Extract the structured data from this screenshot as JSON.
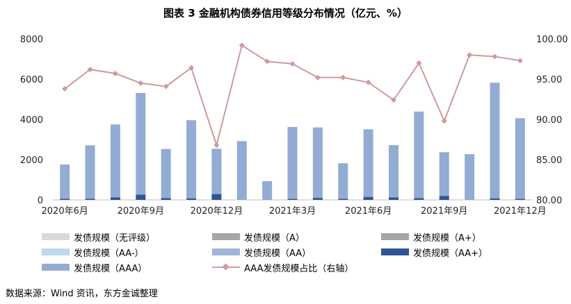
{
  "title": "图表 3 金融机构债券信用等级分布情况（亿元、%）",
  "source": "数据来源：Wind 资讯，东方金诚整理",
  "colors": {
    "none": "#d9d9d9",
    "A": "#a6a6a6",
    "A_plus": "#a6a6a6",
    "AA_minus": "#bdd7ee",
    "AA": "#9fb6d6",
    "AA_plus": "#2f5597",
    "AAA": "#93acd3",
    "ratio_line": "#d09a9a"
  },
  "chart_data": {
    "type": "bar",
    "stacked": true,
    "categories": [
      "2020年6月",
      "2020年7月",
      "2020年8月",
      "2020年9月",
      "2020年10月",
      "2020年11月",
      "2020年12月",
      "2021年1月",
      "2021年2月",
      "2021年3月",
      "2021年4月",
      "2021年5月",
      "2021年6月",
      "2021年7月",
      "2021年8月",
      "2021年9月",
      "2021年10月",
      "2021年11月",
      "2021年12月"
    ],
    "x_tick_labels": [
      "2020年6月",
      "2020年9月",
      "2020年12月",
      "2021年3月",
      "2021年6月",
      "2021年9月",
      "2021年12月"
    ],
    "x_tick_indices": [
      0,
      3,
      6,
      9,
      12,
      15,
      18
    ],
    "y_left": {
      "min": 0,
      "max": 8000,
      "ticks": [
        "0",
        "2000",
        "4000",
        "6000",
        "8000"
      ]
    },
    "y_right": {
      "min": 80,
      "max": 100,
      "ticks": [
        "80.00",
        "85.00",
        "90.00",
        "95.00",
        "100.00"
      ]
    },
    "series": [
      {
        "name": "发债规模（无评级）",
        "key": "none",
        "axis": "left",
        "values": [
          0,
          0,
          0,
          0,
          0,
          0,
          0,
          0,
          0,
          0,
          0,
          0,
          0,
          0,
          0,
          0,
          0,
          0,
          0
        ]
      },
      {
        "name": "发债规模（A）",
        "key": "A",
        "axis": "left",
        "values": [
          0,
          0,
          0,
          0,
          0,
          0,
          0,
          0,
          0,
          0,
          0,
          0,
          0,
          0,
          0,
          0,
          0,
          0,
          0
        ]
      },
      {
        "name": "发债规模（A+）",
        "key": "A_plus",
        "axis": "left",
        "values": [
          0,
          0,
          0,
          0,
          0,
          0,
          0,
          0,
          0,
          0,
          0,
          0,
          0,
          0,
          0,
          0,
          0,
          0,
          0
        ]
      },
      {
        "name": "发债规模（AA-）",
        "key": "AA_minus",
        "axis": "left",
        "values": [
          0,
          0,
          0,
          0,
          0,
          0,
          0,
          0,
          0,
          0,
          0,
          0,
          0,
          0,
          0,
          0,
          0,
          0,
          0
        ]
      },
      {
        "name": "发债规模（AA）",
        "key": "AA",
        "axis": "left",
        "values": [
          0,
          0,
          0,
          0,
          0,
          0,
          0,
          0,
          0,
          0,
          0,
          0,
          0,
          0,
          0,
          0,
          0,
          0,
          0
        ]
      },
      {
        "name": "发债规模（AA+）",
        "key": "AA_plus",
        "axis": "left",
        "values": [
          60,
          60,
          130,
          260,
          90,
          80,
          290,
          0,
          0,
          50,
          100,
          50,
          150,
          130,
          90,
          200,
          0,
          80,
          50
        ]
      },
      {
        "name": "发债规模（AAA）",
        "key": "AAA",
        "axis": "left",
        "values": [
          1700,
          2650,
          3620,
          5050,
          2440,
          3880,
          2250,
          2920,
          930,
          3570,
          3500,
          1770,
          3360,
          2590,
          4300,
          2170,
          2270,
          5740,
          4010
        ]
      },
      {
        "name": "AAA发债规模占比（右轴）",
        "key": "ratio_line",
        "axis": "right",
        "type": "line",
        "values": [
          93.8,
          96.2,
          95.7,
          94.5,
          94.1,
          96.4,
          86.8,
          99.2,
          97.2,
          96.9,
          95.2,
          95.2,
          94.6,
          92.4,
          97.0,
          89.8,
          98.0,
          97.8,
          97.3
        ]
      }
    ]
  },
  "legend": [
    {
      "label": "发债规模（无评级）",
      "key": "none"
    },
    {
      "label": "发债规模（A）",
      "key": "A"
    },
    {
      "label": "发债规模（A+）",
      "key": "A_plus"
    },
    {
      "label": "发债规模（AA-）",
      "key": "AA_minus"
    },
    {
      "label": "发债规模（AA）",
      "key": "AA"
    },
    {
      "label": "发债规模（AA+）",
      "key": "AA_plus"
    },
    {
      "label": "发债规模（AAA）",
      "key": "AAA"
    },
    {
      "label": "AAA发债规模占比（右轴）",
      "key": "ratio_line",
      "line": true
    }
  ]
}
